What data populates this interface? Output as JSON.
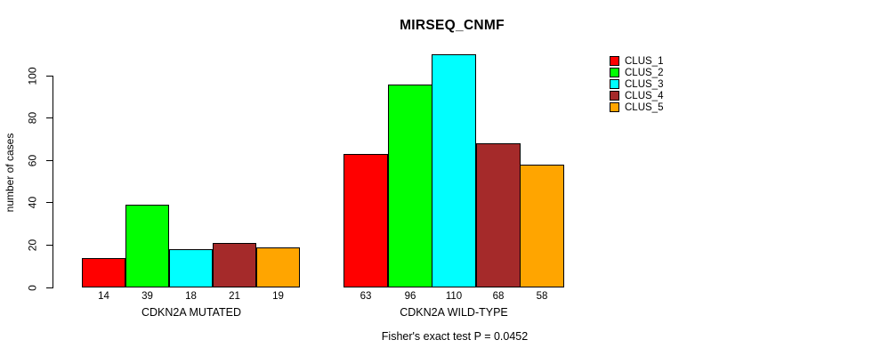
{
  "chart_data": {
    "type": "bar",
    "title": "MIRSEQ_CNMF",
    "ylabel": "number of cases",
    "footer": "Fisher's exact test P = 0.0452",
    "ylim": [
      0,
      100
    ],
    "yticks": [
      0,
      20,
      40,
      60,
      80,
      100
    ],
    "grid": false,
    "legend_position": "right",
    "bar_border_color": "#000000",
    "categories": [
      "CDKN2A MUTATED",
      "CDKN2A WILD-TYPE"
    ],
    "series": [
      {
        "name": "CLUS_1",
        "color": "#FF0000",
        "values": [
          14,
          63
        ]
      },
      {
        "name": "CLUS_2",
        "color": "#00FF00",
        "values": [
          39,
          96
        ]
      },
      {
        "name": "CLUS_3",
        "color": "#00FFFF",
        "values": [
          18,
          110
        ]
      },
      {
        "name": "CLUS_4",
        "color": "#A52A2A",
        "values": [
          21,
          68
        ]
      },
      {
        "name": "CLUS_5",
        "color": "#FFA500",
        "values": [
          19,
          58
        ]
      }
    ],
    "bar_value_labels": [
      [
        14,
        39,
        18,
        21,
        19
      ],
      [
        63,
        96,
        110,
        68,
        58
      ]
    ]
  }
}
